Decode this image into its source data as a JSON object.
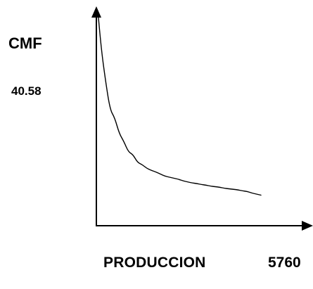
{
  "chart_data": {
    "type": "line",
    "ylabel": "CMF",
    "xlabel": "PRODUCCION",
    "y_tick_label": "40.58",
    "x_tick_label": "5760",
    "grid": false,
    "legend": "none",
    "axes_arrows": true,
    "line_color": "#000000",
    "series": [
      {
        "x": [
          0.2,
          0.5,
          1.0,
          1.5,
          2.0,
          2.5,
          3.0,
          3.5,
          4.0,
          4.5,
          5.0,
          5.5,
          6.0,
          6.5,
          7.0,
          7.5,
          8.0,
          8.5,
          9.0,
          9.5,
          10.0,
          10.5,
          11.0,
          11.5,
          12.0,
          12.5,
          13.0,
          13.5,
          14.0,
          14.5,
          15.0,
          15.5,
          16.0,
          16.5,
          17.0,
          17.5,
          18.0
        ],
        "y": [
          40.0,
          34.0,
          27.5,
          22.0,
          20.5,
          17.5,
          16.0,
          14.0,
          13.5,
          12.0,
          11.6,
          10.9,
          10.5,
          10.2,
          9.8,
          9.4,
          9.2,
          9.0,
          8.8,
          8.5,
          8.3,
          8.1,
          8.0,
          7.8,
          7.7,
          7.5,
          7.4,
          7.3,
          7.1,
          7.0,
          6.9,
          6.8,
          6.6,
          6.5,
          6.2,
          6.0,
          5.8
        ]
      }
    ]
  }
}
